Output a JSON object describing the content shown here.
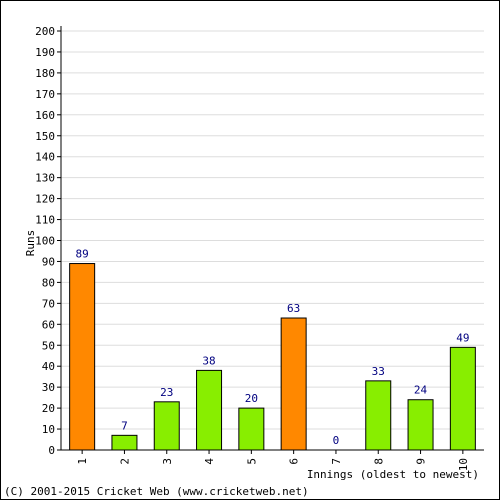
{
  "chart_data": {
    "type": "bar",
    "categories": [
      "1",
      "2",
      "3",
      "4",
      "5",
      "6",
      "7",
      "8",
      "9",
      "10"
    ],
    "values": [
      89,
      7,
      23,
      38,
      20,
      63,
      0,
      33,
      24,
      49
    ],
    "bar_colors": [
      "#ff8800",
      "#88ee00",
      "#88ee00",
      "#88ee00",
      "#88ee00",
      "#ff8800",
      "#88ee00",
      "#88ee00",
      "#88ee00",
      "#88ee00"
    ],
    "ylabel": "Runs",
    "xlabel": "Innings (oldest to newest)",
    "ylim": [
      0,
      200
    ],
    "ytick_step": 10,
    "grid": true
  },
  "footer": {
    "copyright": "(C) 2001-2015 Cricket Web (www.cricketweb.net)"
  },
  "colors": {
    "grid": "#dddddd",
    "axis": "#000000",
    "value_label": "#000080"
  }
}
